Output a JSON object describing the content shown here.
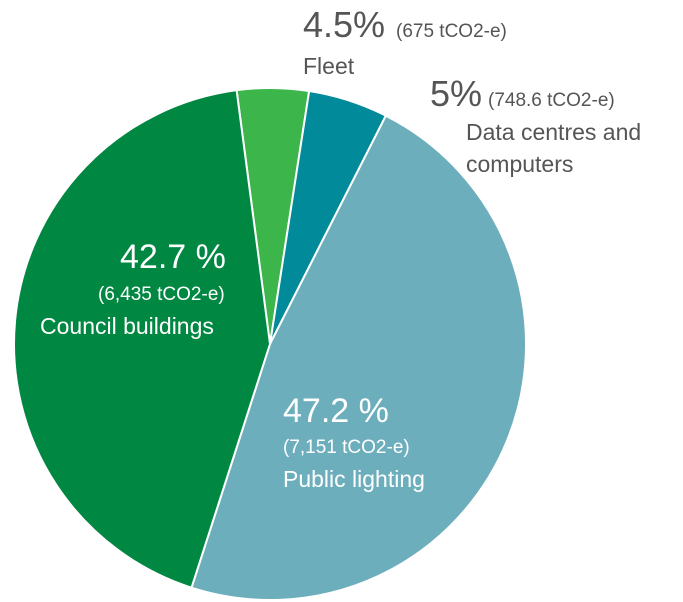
{
  "chart_data": {
    "type": "pie",
    "title": "",
    "unit": "tCO2-e",
    "slices": [
      {
        "label": "Fleet",
        "percent_text": "4.5%",
        "value_text": "(675 tCO2-e)",
        "value": 675,
        "percent": 4.5,
        "color": "#3cb54a"
      },
      {
        "label": "Data centres and computers",
        "percent_text": "5%",
        "value_text": "(748.6 tCO2-e)",
        "value": 748.6,
        "percent": 5.0,
        "color": "#008a9a"
      },
      {
        "label": "Public lighting",
        "percent_text": "47.2 %",
        "value_text": "(7,151 tCO2-e)",
        "value": 7151,
        "percent": 47.2,
        "color": "#6daebc"
      },
      {
        "label": "Council buildings",
        "percent_text": "42.7 %",
        "value_text": "(6,435 tCO2-e)",
        "value": 6435,
        "percent": 42.7,
        "color": "#008742"
      }
    ],
    "label_lines": {
      "data_centres_line1": "Data centres and",
      "data_centres_line2": "computers"
    }
  }
}
